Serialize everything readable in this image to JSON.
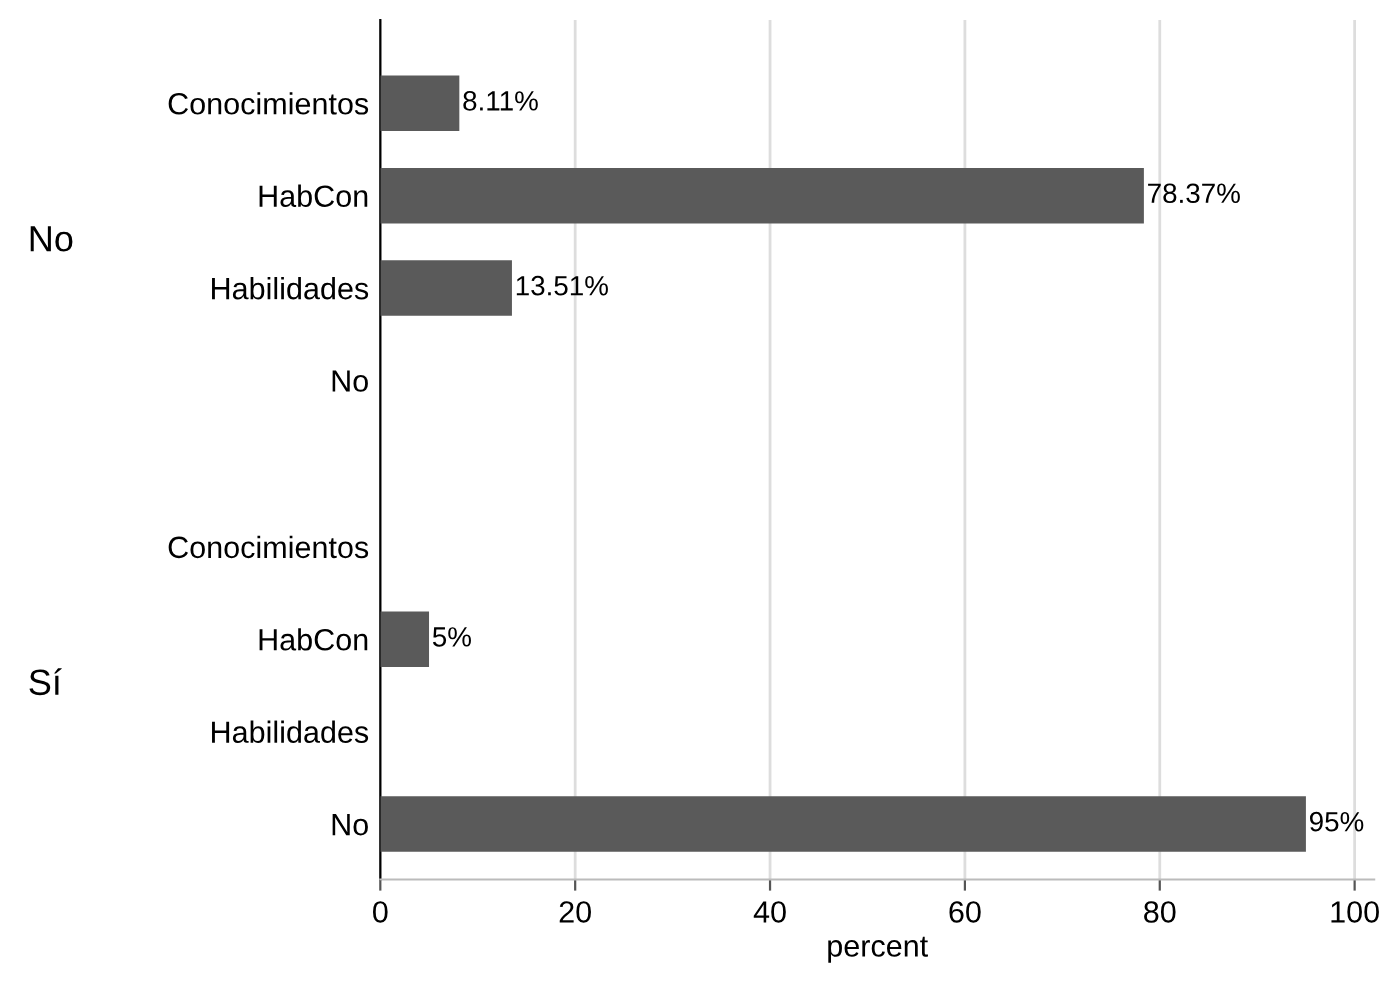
{
  "chart_data": {
    "type": "bar",
    "orientation": "horizontal",
    "xlabel": "percent",
    "categories": [
      "Conocimientos",
      "HabCon",
      "Habilidades",
      "No",
      "Conocimientos",
      "HabCon",
      "Habilidades",
      "No"
    ],
    "values": [
      8.11,
      78.37,
      13.51,
      null,
      null,
      5,
      null,
      95
    ],
    "value_labels": [
      "8.11%",
      "78.37%",
      "13.51%",
      null,
      null,
      "5%",
      null,
      "95%"
    ],
    "color": "#5a5a5a",
    "annotations": [
      "No",
      "Sí"
    ],
    "xlim": [
      0,
      102
    ],
    "xticks": [
      0,
      20,
      40,
      60,
      80,
      100
    ],
    "grid": "x",
    "legend": false
  }
}
